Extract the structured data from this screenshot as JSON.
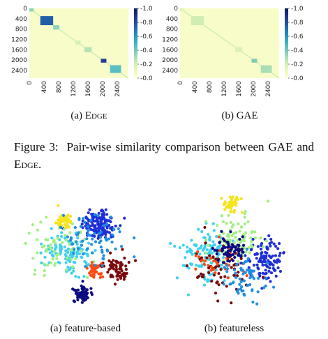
{
  "figure3": {
    "caption_prefix": "Figure 3:",
    "caption_text_1": "Pair-wise similarity comparison between GAE and ",
    "caption_edge": "Edge",
    "caption_text_2": "."
  },
  "heatmaps": [
    {
      "caption_label": "(a) ",
      "caption_name": "Edge",
      "caption_small_caps": true,
      "y_ticks": [
        "0",
        "400",
        "800",
        "1200",
        "1600",
        "2000",
        "2400"
      ],
      "x_ticks": [
        "0",
        "400",
        "800",
        "1200",
        "1600",
        "2000",
        "2400"
      ],
      "colorbar_ticks": [
        "1.0",
        "0.8",
        "0.6",
        "0.4",
        "0.2",
        "0.0"
      ]
    },
    {
      "caption_label": "(b) ",
      "caption_name": "GAE",
      "caption_small_caps": false,
      "y_ticks": [
        "0",
        "400",
        "800",
        "1200",
        "1600",
        "2000",
        "2400"
      ],
      "x_ticks": [
        "0",
        "400",
        "800",
        "1200",
        "1600",
        "2000",
        "2400"
      ],
      "colorbar_ticks": [
        "1.0",
        "0.8",
        "0.6",
        "0.4",
        "0.2",
        "0.0"
      ]
    }
  ],
  "scatter_panels": [
    {
      "caption": "(a) feature-based"
    },
    {
      "caption": "(b) featureless"
    }
  ],
  "chart_data": [
    {
      "type": "heatmap",
      "title": "",
      "x_range": [
        0,
        2700
      ],
      "y_range": [
        0,
        2700
      ],
      "color_range": [
        0.0,
        1.0
      ],
      "colormap": "YlGnBu",
      "blocks": [
        {
          "from": 0,
          "to": 120,
          "value": 0.35
        },
        {
          "from": 300,
          "to": 650,
          "value": 0.75
        },
        {
          "from": 650,
          "to": 820,
          "value": 0.35
        },
        {
          "from": 1250,
          "to": 1400,
          "value": 0.2
        },
        {
          "from": 1500,
          "to": 1700,
          "value": 0.28
        },
        {
          "from": 1950,
          "to": 2100,
          "value": 0.85
        },
        {
          "from": 2200,
          "to": 2500,
          "value": 0.45
        }
      ]
    },
    {
      "type": "heatmap",
      "title": "",
      "x_range": [
        0,
        2700
      ],
      "y_range": [
        0,
        2700
      ],
      "color_range": [
        0.0,
        1.0
      ],
      "colormap": "YlGnBu",
      "blocks": [
        {
          "from": 0,
          "to": 120,
          "value": 0.15
        },
        {
          "from": 300,
          "to": 650,
          "value": 0.22
        },
        {
          "from": 1500,
          "to": 1700,
          "value": 0.18
        },
        {
          "from": 1950,
          "to": 2100,
          "value": 0.38
        },
        {
          "from": 2200,
          "to": 2500,
          "value": 0.3
        }
      ]
    },
    {
      "type": "scatter",
      "title": "",
      "clusters": [
        {
          "color": "#1f2fd8",
          "cx": 0.6,
          "cy": 0.28,
          "spread": 0.13,
          "n": 140
        },
        {
          "color": "#f5e31e",
          "cx": 0.35,
          "cy": 0.26,
          "spread": 0.06,
          "n": 45
        },
        {
          "color": "#3fd0f0",
          "cx": 0.38,
          "cy": 0.5,
          "spread": 0.16,
          "n": 120
        },
        {
          "color": "#a0f080",
          "cx": 0.3,
          "cy": 0.48,
          "spread": 0.22,
          "n": 60
        },
        {
          "color": "#7a0a0a",
          "cx": 0.72,
          "cy": 0.62,
          "spread": 0.1,
          "n": 70
        },
        {
          "color": "#ff4a10",
          "cx": 0.57,
          "cy": 0.64,
          "spread": 0.05,
          "n": 40
        },
        {
          "color": "#0a0a80",
          "cx": 0.48,
          "cy": 0.82,
          "spread": 0.07,
          "n": 60
        },
        {
          "color": "#1f8fe0",
          "cx": 0.55,
          "cy": 0.4,
          "spread": 0.2,
          "n": 70
        }
      ]
    },
    {
      "type": "scatter",
      "title": "",
      "clusters": [
        {
          "color": "#f5e31e",
          "cx": 0.48,
          "cy": 0.12,
          "spread": 0.07,
          "n": 45
        },
        {
          "color": "#1f2fd8",
          "cx": 0.72,
          "cy": 0.55,
          "spread": 0.15,
          "n": 110
        },
        {
          "color": "#3fd0f0",
          "cx": 0.3,
          "cy": 0.52,
          "spread": 0.2,
          "n": 130
        },
        {
          "color": "#a0f080",
          "cx": 0.5,
          "cy": 0.4,
          "spread": 0.18,
          "n": 90
        },
        {
          "color": "#7a0a0a",
          "cx": 0.42,
          "cy": 0.62,
          "spread": 0.22,
          "n": 70
        },
        {
          "color": "#ff4a10",
          "cx": 0.38,
          "cy": 0.56,
          "spread": 0.16,
          "n": 30
        },
        {
          "color": "#0a0a80",
          "cx": 0.48,
          "cy": 0.48,
          "spread": 0.1,
          "n": 70
        },
        {
          "color": "#1f8fe0",
          "cx": 0.58,
          "cy": 0.7,
          "spread": 0.18,
          "n": 60
        }
      ]
    }
  ]
}
